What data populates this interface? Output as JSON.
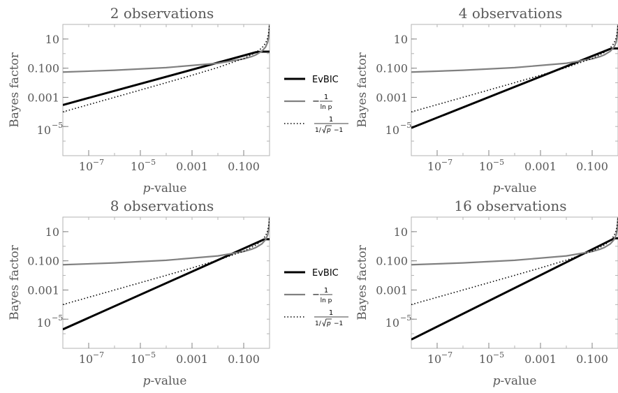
{
  "chart_data": [
    {
      "type": "line",
      "title": "2 observations",
      "xlabel_italic": "p",
      "xlabel_rest": "-value",
      "ylabel": "Bayes factor",
      "xscale": "log",
      "yscale": "log",
      "xlim": [
        1e-08,
        1
      ],
      "ylim": [
        1e-07,
        100
      ],
      "xticks": [
        {
          "value": 1e-07,
          "base": "10",
          "exp": "−7"
        },
        {
          "value": 1e-05,
          "base": "10",
          "exp": "−5"
        },
        {
          "value": 0.001,
          "label": "0.001"
        },
        {
          "value": 0.1,
          "label": "0.100"
        }
      ],
      "yticks": [
        {
          "value": 10,
          "label": "10"
        },
        {
          "value": 0.1,
          "label": "0.100"
        },
        {
          "value": 0.001,
          "label": "0.001"
        },
        {
          "value": 1e-05,
          "base": "10",
          "exp": "−5"
        }
      ],
      "series": [
        {
          "name": "EvBIC",
          "style": "solid",
          "color": "#000000",
          "x": [
            1e-08,
            0.3,
            0.5,
            1
          ],
          "y": [
            0.0003,
            1.25,
            1.35,
            1.35
          ]
        },
        {
          "style": "solid",
          "color": "#808080",
          "x": [
            1e-08,
            1e-06,
            0.0001,
            0.01,
            0.1,
            0.2,
            0.3,
            0.5,
            0.7,
            0.85,
            0.95,
            1
          ],
          "y": [
            0.054,
            0.072,
            0.109,
            0.217,
            0.434,
            0.621,
            0.83,
            1.44,
            2.8,
            6.15,
            19.5,
            100
          ]
        },
        {
          "style": "dotted",
          "color": "#000000",
          "x": [
            1e-08,
            1e-06,
            0.0001,
            0.001,
            0.01,
            0.1,
            0.3,
            0.5,
            0.7,
            0.85,
            0.95,
            1
          ],
          "y": [
            0.0001,
            0.001,
            0.0101,
            0.0327,
            0.111,
            0.462,
            1.21,
            2.41,
            5.1,
            11.8,
            38.5,
            100
          ]
        }
      ]
    },
    {
      "type": "line",
      "title": "4 observations",
      "xlabel_italic": "p",
      "xlabel_rest": "-value",
      "ylabel": "Bayes factor",
      "xscale": "log",
      "yscale": "log",
      "xlim": [
        1e-08,
        1
      ],
      "ylim": [
        1e-07,
        100
      ],
      "xticks": [
        {
          "value": 1e-07,
          "base": "10",
          "exp": "−7"
        },
        {
          "value": 1e-05,
          "base": "10",
          "exp": "−5"
        },
        {
          "value": 0.001,
          "label": "0.001"
        },
        {
          "value": 0.1,
          "label": "0.100"
        }
      ],
      "yticks": [
        {
          "value": 10,
          "label": "10"
        },
        {
          "value": 0.1,
          "label": "0.100"
        },
        {
          "value": 0.001,
          "label": "0.001"
        },
        {
          "value": 1e-05,
          "base": "10",
          "exp": "−5"
        }
      ],
      "series": [
        {
          "name": "EvBIC",
          "style": "solid",
          "color": "#000000",
          "x": [
            1e-08,
            0.5,
            0.65,
            1
          ],
          "y": [
            8e-06,
            2.1,
            2.25,
            2.25
          ]
        },
        {
          "style": "solid",
          "color": "#808080",
          "x": [
            1e-08,
            1e-06,
            0.0001,
            0.01,
            0.1,
            0.2,
            0.3,
            0.5,
            0.7,
            0.85,
            0.95,
            1
          ],
          "y": [
            0.054,
            0.072,
            0.109,
            0.217,
            0.434,
            0.621,
            0.83,
            1.44,
            2.8,
            6.15,
            19.5,
            100
          ]
        },
        {
          "style": "dotted",
          "color": "#000000",
          "x": [
            1e-08,
            1e-06,
            0.0001,
            0.001,
            0.01,
            0.1,
            0.3,
            0.5,
            0.7,
            0.85,
            0.95,
            1
          ],
          "y": [
            0.0001,
            0.001,
            0.0101,
            0.0327,
            0.111,
            0.462,
            1.21,
            2.41,
            5.1,
            11.8,
            38.5,
            100
          ]
        }
      ]
    },
    {
      "type": "line",
      "title": "8 observations",
      "xlabel_italic": "p",
      "xlabel_rest": "-value",
      "ylabel": "Bayes factor",
      "xscale": "log",
      "yscale": "log",
      "xlim": [
        1e-08,
        1
      ],
      "ylim": [
        1e-07,
        100
      ],
      "xticks": [
        {
          "value": 1e-07,
          "base": "10",
          "exp": "−7"
        },
        {
          "value": 1e-05,
          "base": "10",
          "exp": "−5"
        },
        {
          "value": 0.001,
          "label": "0.001"
        },
        {
          "value": 0.1,
          "label": "0.100"
        }
      ],
      "yticks": [
        {
          "value": 10,
          "label": "10"
        },
        {
          "value": 0.1,
          "label": "0.100"
        },
        {
          "value": 0.001,
          "label": "0.001"
        },
        {
          "value": 1e-05,
          "base": "10",
          "exp": "−5"
        }
      ],
      "series": [
        {
          "name": "EvBIC",
          "style": "solid",
          "color": "#000000",
          "x": [
            1e-08,
            0.6,
            0.75,
            1
          ],
          "y": [
            2e-06,
            2.9,
            3.0,
            3.0
          ]
        },
        {
          "style": "solid",
          "color": "#808080",
          "x": [
            1e-08,
            1e-06,
            0.0001,
            0.01,
            0.1,
            0.2,
            0.3,
            0.5,
            0.7,
            0.85,
            0.95,
            1
          ],
          "y": [
            0.054,
            0.072,
            0.109,
            0.217,
            0.434,
            0.621,
            0.83,
            1.44,
            2.8,
            6.15,
            19.5,
            100
          ]
        },
        {
          "style": "dotted",
          "color": "#000000",
          "x": [
            1e-08,
            1e-06,
            0.0001,
            0.001,
            0.01,
            0.1,
            0.3,
            0.5,
            0.7,
            0.85,
            0.95,
            1
          ],
          "y": [
            0.0001,
            0.001,
            0.0101,
            0.0327,
            0.111,
            0.462,
            1.21,
            2.41,
            5.1,
            11.8,
            38.5,
            100
          ]
        }
      ]
    },
    {
      "type": "line",
      "title": "16 observations",
      "xlabel_italic": "p",
      "xlabel_rest": "-value",
      "ylabel": "Bayes factor",
      "xscale": "log",
      "yscale": "log",
      "xlim": [
        1e-08,
        1
      ],
      "ylim": [
        1e-07,
        100
      ],
      "xticks": [
        {
          "value": 1e-07,
          "base": "10",
          "exp": "−7"
        },
        {
          "value": 1e-05,
          "base": "10",
          "exp": "−5"
        },
        {
          "value": 0.001,
          "label": "0.001"
        },
        {
          "value": 0.1,
          "label": "0.100"
        }
      ],
      "yticks": [
        {
          "value": 10,
          "label": "10"
        },
        {
          "value": 0.1,
          "label": "0.100"
        },
        {
          "value": 0.001,
          "label": "0.001"
        },
        {
          "value": 1e-05,
          "base": "10",
          "exp": "−5"
        }
      ],
      "series": [
        {
          "name": "EvBIC",
          "style": "solid",
          "color": "#000000",
          "x": [
            1e-08,
            0.7,
            0.8,
            1
          ],
          "y": [
            4e-07,
            3.4,
            3.5,
            3.5
          ]
        },
        {
          "style": "solid",
          "color": "#808080",
          "x": [
            1e-08,
            1e-06,
            0.0001,
            0.01,
            0.1,
            0.2,
            0.3,
            0.5,
            0.7,
            0.85,
            0.95,
            1
          ],
          "y": [
            0.054,
            0.072,
            0.109,
            0.217,
            0.434,
            0.621,
            0.83,
            1.44,
            2.8,
            6.15,
            19.5,
            100
          ]
        },
        {
          "style": "dotted",
          "color": "#000000",
          "x": [
            1e-08,
            1e-06,
            0.0001,
            0.001,
            0.01,
            0.1,
            0.3,
            0.5,
            0.7,
            0.85,
            0.95,
            1
          ],
          "y": [
            0.0001,
            0.001,
            0.0101,
            0.0327,
            0.111,
            0.462,
            1.21,
            2.41,
            5.1,
            11.8,
            38.5,
            100
          ]
        }
      ]
    }
  ],
  "legends": [
    {
      "entries": [
        {
          "key": "evbic",
          "style": "solid",
          "color": "#000000",
          "label": "EvBIC"
        },
        {
          "key": "neg-inv-ln-p",
          "style": "solid",
          "color": "#808080",
          "sign": "−",
          "num": "1",
          "den": "ln p"
        },
        {
          "key": "inv-sqrt-p",
          "style": "dotted",
          "color": "#000000",
          "num": "1",
          "den_pre": "1/",
          "den_rad": "p",
          "den_post": "−1"
        }
      ]
    },
    {
      "entries": [
        {
          "key": "evbic",
          "style": "solid",
          "color": "#000000",
          "label": "EvBIC"
        },
        {
          "key": "neg-inv-ln-p",
          "style": "solid",
          "color": "#808080",
          "sign": "−",
          "num": "1",
          "den": "ln p"
        },
        {
          "key": "inv-sqrt-p",
          "style": "dotted",
          "color": "#000000",
          "num": "1",
          "den_pre": "1/",
          "den_rad": "p",
          "den_post": "−1"
        }
      ]
    }
  ]
}
